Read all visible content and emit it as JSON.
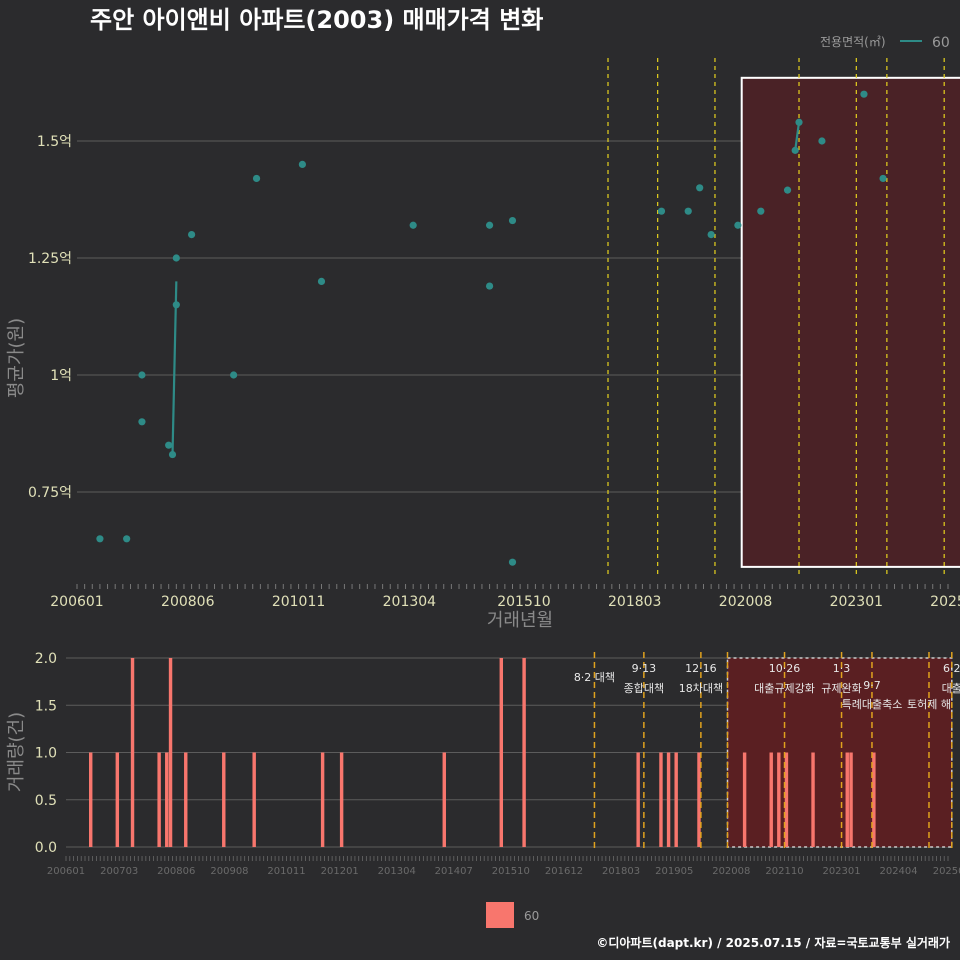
{
  "title": "주안 아이앤비 아파트(2003) 매매가격 변화",
  "footer": "©디아파트(dapt.kr) / 2025.07.15 / 자료=국토교통부 실거래가",
  "colors": {
    "background": "#2b2b2d",
    "price_series": "#2e8b87",
    "volume_bars": "#f8766d",
    "policy_line_top": "#e6d21e",
    "policy_line_bottom": "#e0a21e",
    "highlight_fill": "#4a2226",
    "highlight_fill_bottom": "#5a1f22"
  },
  "legend": {
    "title": "전용면적(㎡)",
    "label": "60"
  },
  "bottom_legend": {
    "label": "60"
  },
  "chart_data": [
    {
      "type": "scatter",
      "panel": "price",
      "xlabel": "거래년월",
      "ylabel": "평균가(원)",
      "x_ticks": [
        "200601",
        "200806",
        "201011",
        "201304",
        "201510",
        "201803",
        "202008",
        "202301",
        "2025"
      ],
      "y_ticks": [
        "0.75억",
        "1억",
        "1.25억",
        "1.5억"
      ],
      "y_tick_values": [
        0.75,
        1.0,
        1.25,
        1.5
      ],
      "ylim": [
        0.55,
        1.65
      ],
      "grid": true,
      "legend_position": "top-right",
      "series": [
        {
          "name": "60",
          "points": [
            {
              "x": "2006-07",
              "y": 0.65
            },
            {
              "x": "2007-02",
              "y": 0.65
            },
            {
              "x": "2007-06",
              "y": 0.9
            },
            {
              "x": "2007-06",
              "y": 1.0
            },
            {
              "x": "2008-01",
              "y": 0.85
            },
            {
              "x": "2008-02",
              "y": 0.83
            },
            {
              "x": "2008-03",
              "y": 1.15
            },
            {
              "x": "2008-03",
              "y": 1.25
            },
            {
              "x": "2008-07",
              "y": 1.3
            },
            {
              "x": "2009-06",
              "y": 1.0
            },
            {
              "x": "2009-12",
              "y": 1.42
            },
            {
              "x": "2010-12",
              "y": 1.45
            },
            {
              "x": "2011-05",
              "y": 1.2
            },
            {
              "x": "2013-05",
              "y": 1.32
            },
            {
              "x": "2015-01",
              "y": 1.32
            },
            {
              "x": "2015-01",
              "y": 1.19
            },
            {
              "x": "2015-07",
              "y": 1.33
            },
            {
              "x": "2015-07",
              "y": 0.6
            },
            {
              "x": "2018-10",
              "y": 1.35
            },
            {
              "x": "2019-05",
              "y": 1.35
            },
            {
              "x": "2019-08",
              "y": 1.4
            },
            {
              "x": "2019-11",
              "y": 1.3
            },
            {
              "x": "2020-06",
              "y": 1.32
            },
            {
              "x": "2020-12",
              "y": 1.35
            },
            {
              "x": "2021-07",
              "y": 1.395
            },
            {
              "x": "2021-09",
              "y": 1.48
            },
            {
              "x": "2021-10",
              "y": 1.54
            },
            {
              "x": "2022-04",
              "y": 1.5
            },
            {
              "x": "2023-03",
              "y": 1.6
            },
            {
              "x": "2023-08",
              "y": 1.42
            }
          ],
          "line": [
            {
              "x": "2008-02",
              "y": 0.83
            },
            {
              "x": "2008-03",
              "y": 1.2
            },
            null,
            {
              "x": "2021-09",
              "y": 1.48
            },
            {
              "x": "2021-10",
              "y": 1.54
            }
          ]
        }
      ],
      "policy_lines": [
        "2017-08",
        "2018-09",
        "2019-12",
        "2021-10",
        "2023-01",
        "2023-09",
        "2024-12",
        "2025-06"
      ],
      "highlight_range": {
        "x_start": "2020-07",
        "x_end": "2025-06",
        "y_start": 0.59,
        "y_end": 1.635
      }
    },
    {
      "type": "bar",
      "panel": "volume",
      "ylabel": "거래량(건)",
      "x_ticks": [
        "200601",
        "200703",
        "200806",
        "200908",
        "201011",
        "201201",
        "201304",
        "201407",
        "201510",
        "201612",
        "201803",
        "201905",
        "202008",
        "202110",
        "202301",
        "202404",
        "202506"
      ],
      "y_ticks": [
        "0.0",
        "0.5",
        "1.0",
        "1.5",
        "2.0"
      ],
      "y_tick_values": [
        0,
        0.5,
        1.0,
        1.5,
        2.0
      ],
      "ylim": [
        0,
        2.0
      ],
      "grid": true,
      "legend_position": "bottom",
      "series": [
        {
          "name": "60",
          "points": [
            {
              "x": "2006-07",
              "y": 1
            },
            {
              "x": "2007-02",
              "y": 1
            },
            {
              "x": "2007-06",
              "y": 2
            },
            {
              "x": "2008-01",
              "y": 1
            },
            {
              "x": "2008-03",
              "y": 1
            },
            {
              "x": "2008-04",
              "y": 2
            },
            {
              "x": "2008-08",
              "y": 1
            },
            {
              "x": "2009-06",
              "y": 1
            },
            {
              "x": "2010-02",
              "y": 1
            },
            {
              "x": "2011-08",
              "y": 1
            },
            {
              "x": "2012-01",
              "y": 1
            },
            {
              "x": "2014-04",
              "y": 1
            },
            {
              "x": "2015-07",
              "y": 2
            },
            {
              "x": "2016-01",
              "y": 2
            },
            {
              "x": "2018-07",
              "y": 1
            },
            {
              "x": "2019-01",
              "y": 1
            },
            {
              "x": "2019-03",
              "y": 1
            },
            {
              "x": "2019-05",
              "y": 1
            },
            {
              "x": "2019-11",
              "y": 1
            },
            {
              "x": "2020-11",
              "y": 1
            },
            {
              "x": "2021-06",
              "y": 1
            },
            {
              "x": "2021-08",
              "y": 1
            },
            {
              "x": "2021-10",
              "y": 1
            },
            {
              "x": "2022-05",
              "y": 1
            },
            {
              "x": "2023-02",
              "y": 1
            },
            {
              "x": "2023-03",
              "y": 1
            },
            {
              "x": "2023-09",
              "y": 1
            }
          ]
        }
      ],
      "policy_lines": [
        "2017-08",
        "2018-09",
        "2019-12",
        "2020-07",
        "2021-10",
        "2023-01",
        "2023-09",
        "2024-12",
        "2025-06"
      ],
      "highlight_range": {
        "x_start": "2020-07",
        "x_end": "2025-06",
        "y_start": 0,
        "y_end": 2.0
      },
      "policy_labels": [
        {
          "date": "2017-08",
          "lines": [
            "8·2 대책"
          ]
        },
        {
          "date": "2018-09",
          "lines": [
            "9·13",
            "종합대책"
          ]
        },
        {
          "date": "2019-12",
          "lines": [
            "12·16",
            "18차대책"
          ]
        },
        {
          "date": "2021-10",
          "lines": [
            "10·26",
            "대출규제강화"
          ]
        },
        {
          "date": "2023-01",
          "lines": [
            "1·3",
            "규제완화"
          ]
        },
        {
          "date": "2023-09",
          "lines": [
            "9·7",
            "특례대출축소"
          ]
        },
        {
          "date": "2024-12",
          "lines": [
            "토허제 해"
          ]
        },
        {
          "date": "2025-06",
          "lines": [
            "6·2",
            "대출"
          ]
        }
      ]
    }
  ]
}
